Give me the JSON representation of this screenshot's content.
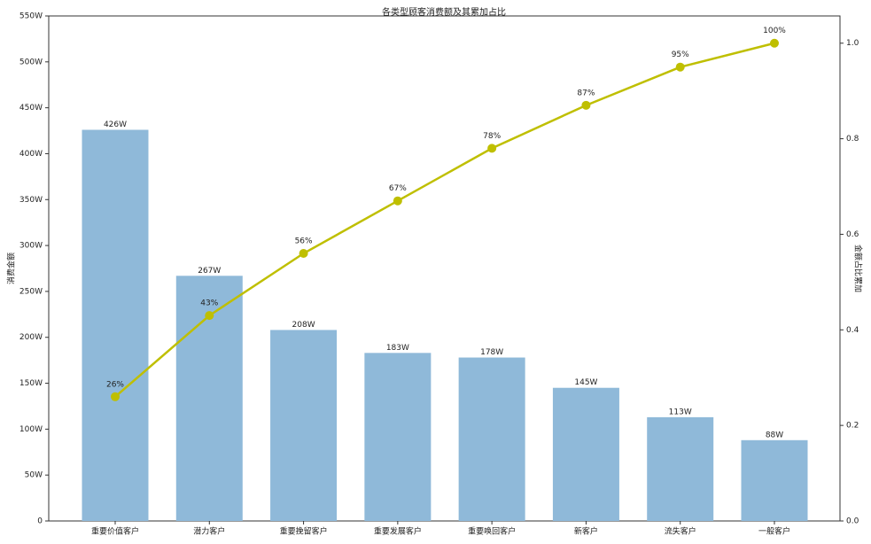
{
  "chart_data": {
    "type": "bar",
    "title": "各类型顾客消费额及其累加占比",
    "y_label": "消费金额",
    "y2_label": "金额占比累加",
    "categories": [
      "重要价值客户",
      "潜力客户",
      "重要挽留客户",
      "重要发展客户",
      "重要唤回客户",
      "新客户",
      "流失客户",
      "一般客户"
    ],
    "series": [
      {
        "type": "bar",
        "color": "#8fb9d9",
        "values": [
          426,
          267,
          208,
          183,
          178,
          145,
          113,
          88
        ],
        "value_labels": [
          "426W",
          "267W",
          "208W",
          "183W",
          "178W",
          "145W",
          "113W",
          "88W"
        ]
      },
      {
        "type": "line",
        "axis": "y2",
        "color": "#bfbf00",
        "values": [
          0.26,
          0.43,
          0.56,
          0.67,
          0.78,
          0.87,
          0.95,
          1.0
        ],
        "value_labels": [
          "26%",
          "43%",
          "56%",
          "67%",
          "78%",
          "87%",
          "95%",
          "100%"
        ]
      }
    ],
    "ylim": [
      0,
      550
    ],
    "yticks": [
      0,
      {
        "value": 50,
        "label": "50W"
      },
      {
        "value": 100,
        "label": "100W"
      },
      {
        "value": 150,
        "label": "150W"
      },
      {
        "value": 200,
        "label": "200W"
      },
      {
        "value": 250,
        "label": "250W"
      },
      {
        "value": 300,
        "label": "300W"
      },
      {
        "value": 350,
        "label": "350W"
      },
      {
        "value": 400,
        "label": "400W"
      },
      {
        "value": 450,
        "label": "450W"
      },
      {
        "value": 500,
        "label": "500W"
      },
      {
        "value": 550,
        "label": "550W"
      }
    ],
    "y2lim": [
      0,
      1.057
    ],
    "y2ticks": [
      {
        "value": 0,
        "label": "0.0"
      },
      0.2,
      0.4,
      0.6,
      0.8,
      {
        "value": 1,
        "label": "1.0"
      }
    ],
    "grid": false
  }
}
